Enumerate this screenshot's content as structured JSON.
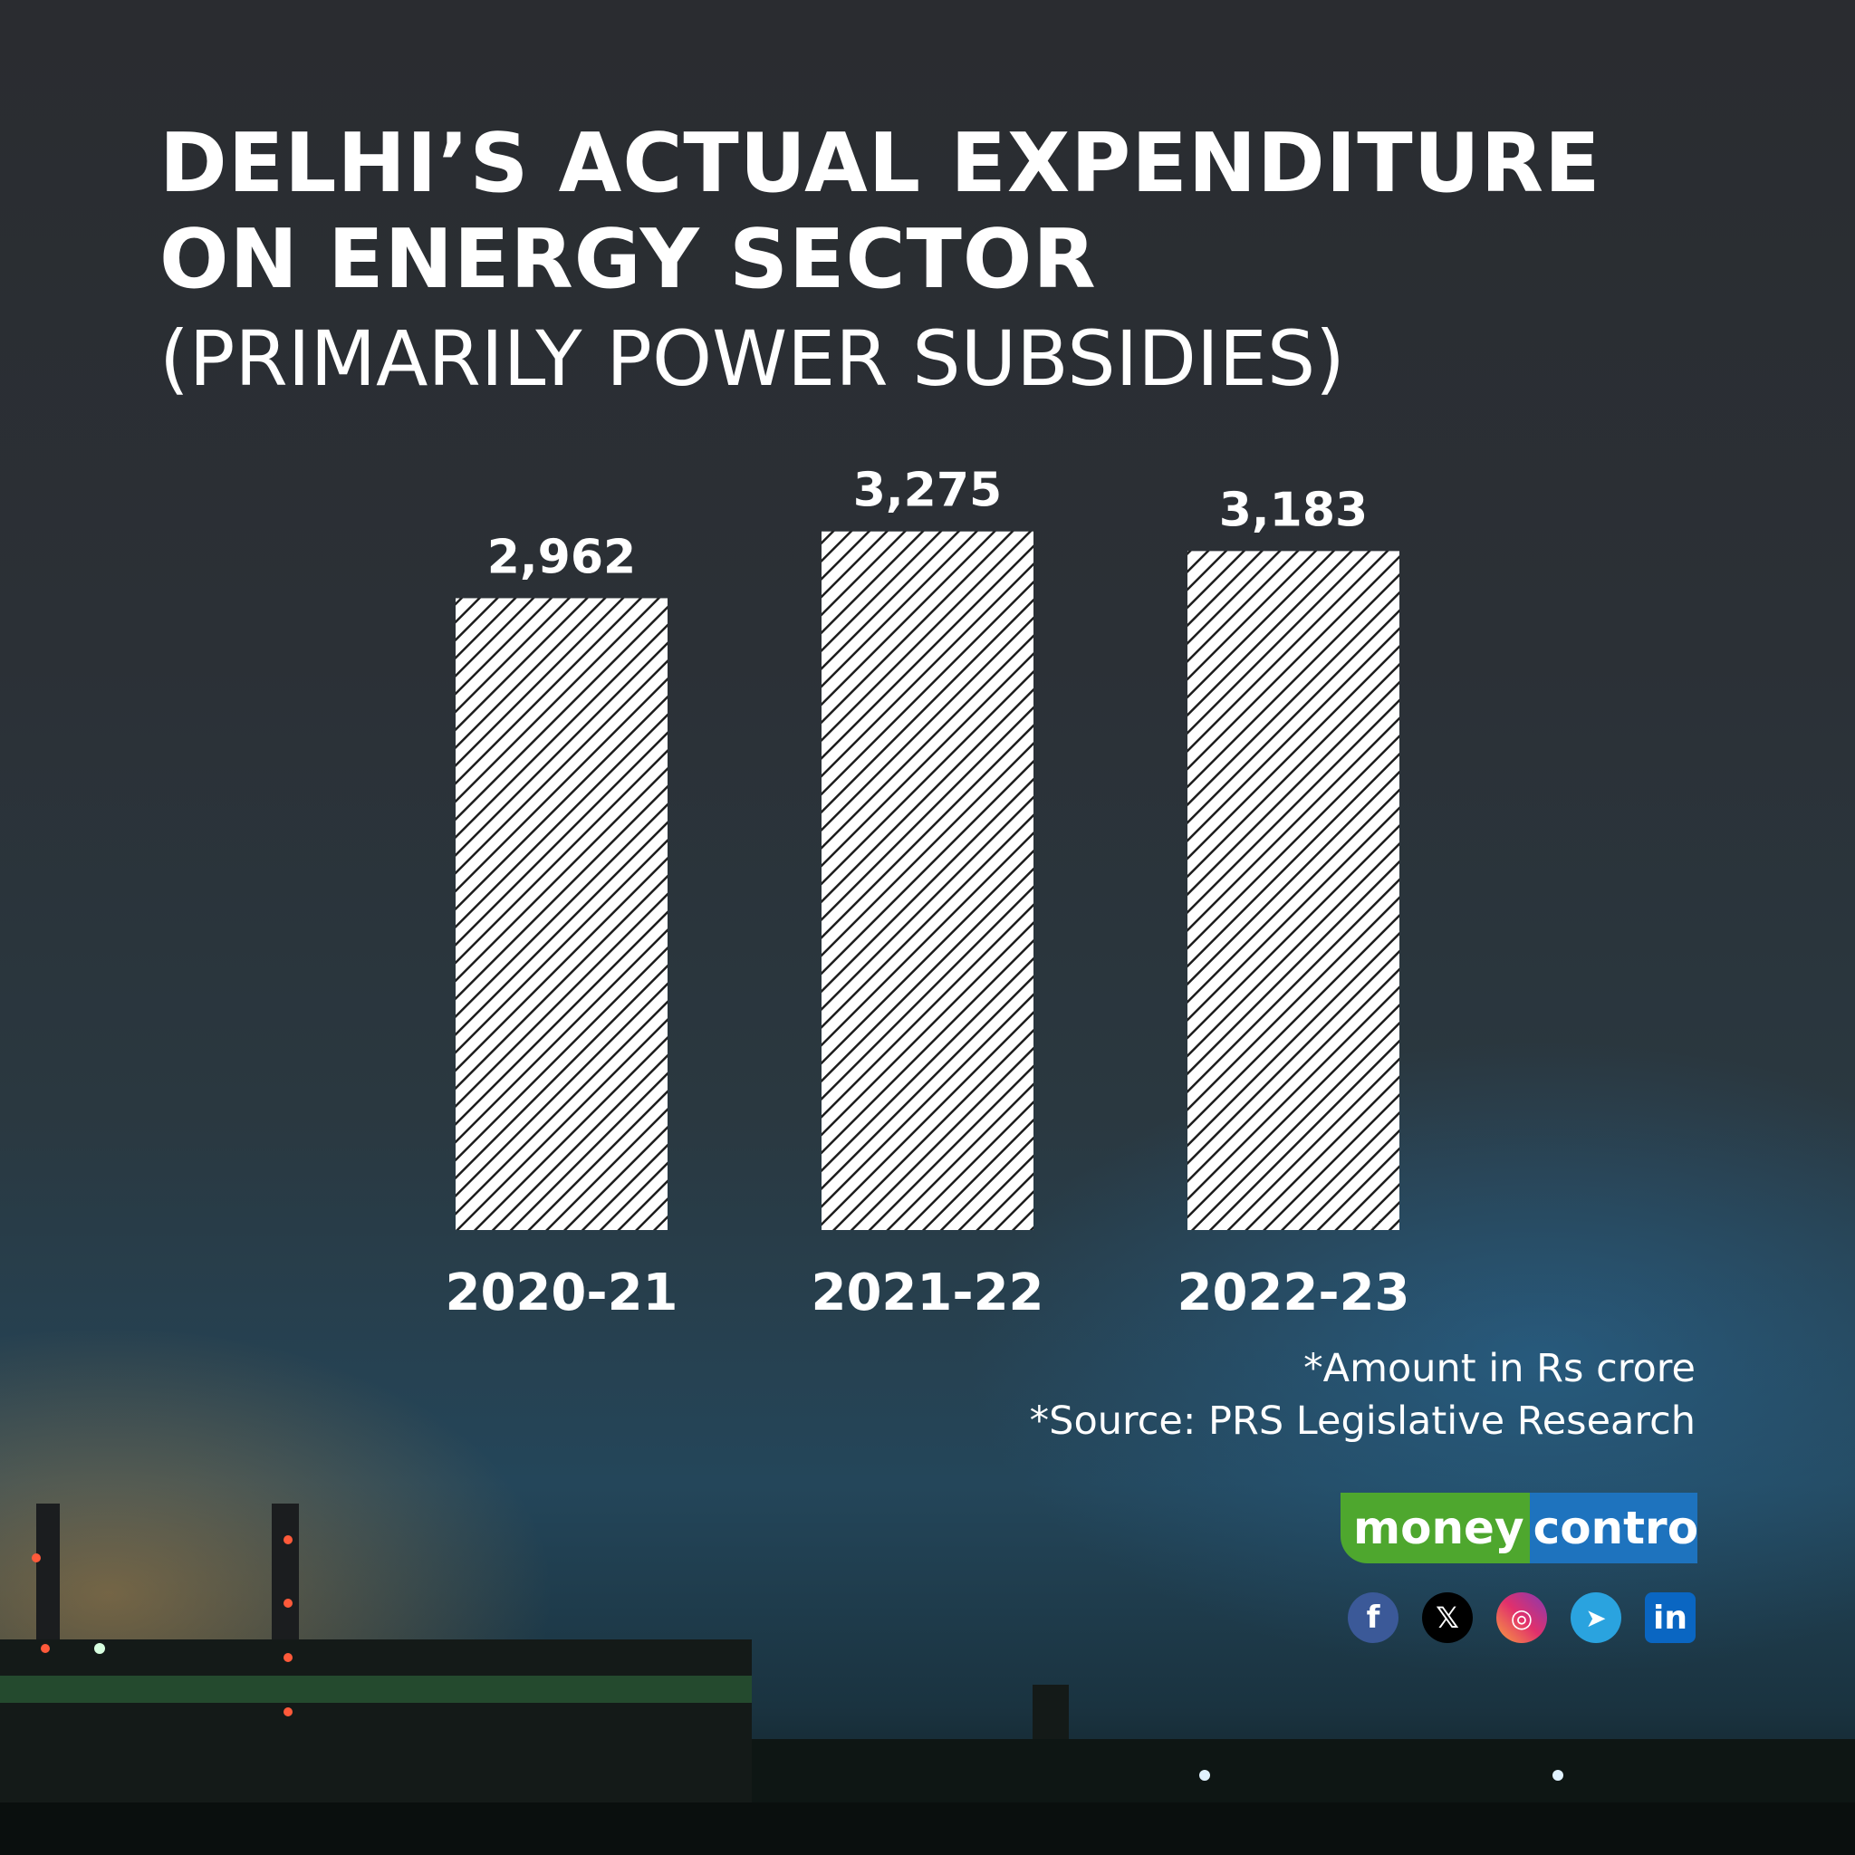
{
  "title": "DELHI’S ACTUAL EXPENDITURE ON ENERGY SECTOR",
  "subtitle": "(PRIMARILY POWER SUBSIDIES)",
  "chart_data": {
    "type": "bar",
    "categories": [
      "2020-21",
      "2021-22",
      "2022-23"
    ],
    "values": [
      2962,
      3275,
      3183
    ],
    "value_labels": [
      "2,962",
      "3,275",
      "3,183"
    ],
    "title": "DELHI’S ACTUAL EXPENDITURE ON ENERGY SECTOR",
    "subtitle": "(PRIMARILY POWER SUBSIDIES)",
    "grid": false,
    "legend": "none",
    "bar_fill": "white hatched"
  },
  "notes": {
    "unit": "*Amount in Rs crore",
    "source": "*Source: PRS Legislative Research"
  },
  "brand": {
    "part1": "money",
    "part2": "control",
    "color1": "#4ea72e",
    "color2": "#1e73be"
  },
  "social_icons": [
    "facebook-icon",
    "x-icon",
    "instagram-icon",
    "telegram-icon",
    "linkedin-icon"
  ]
}
